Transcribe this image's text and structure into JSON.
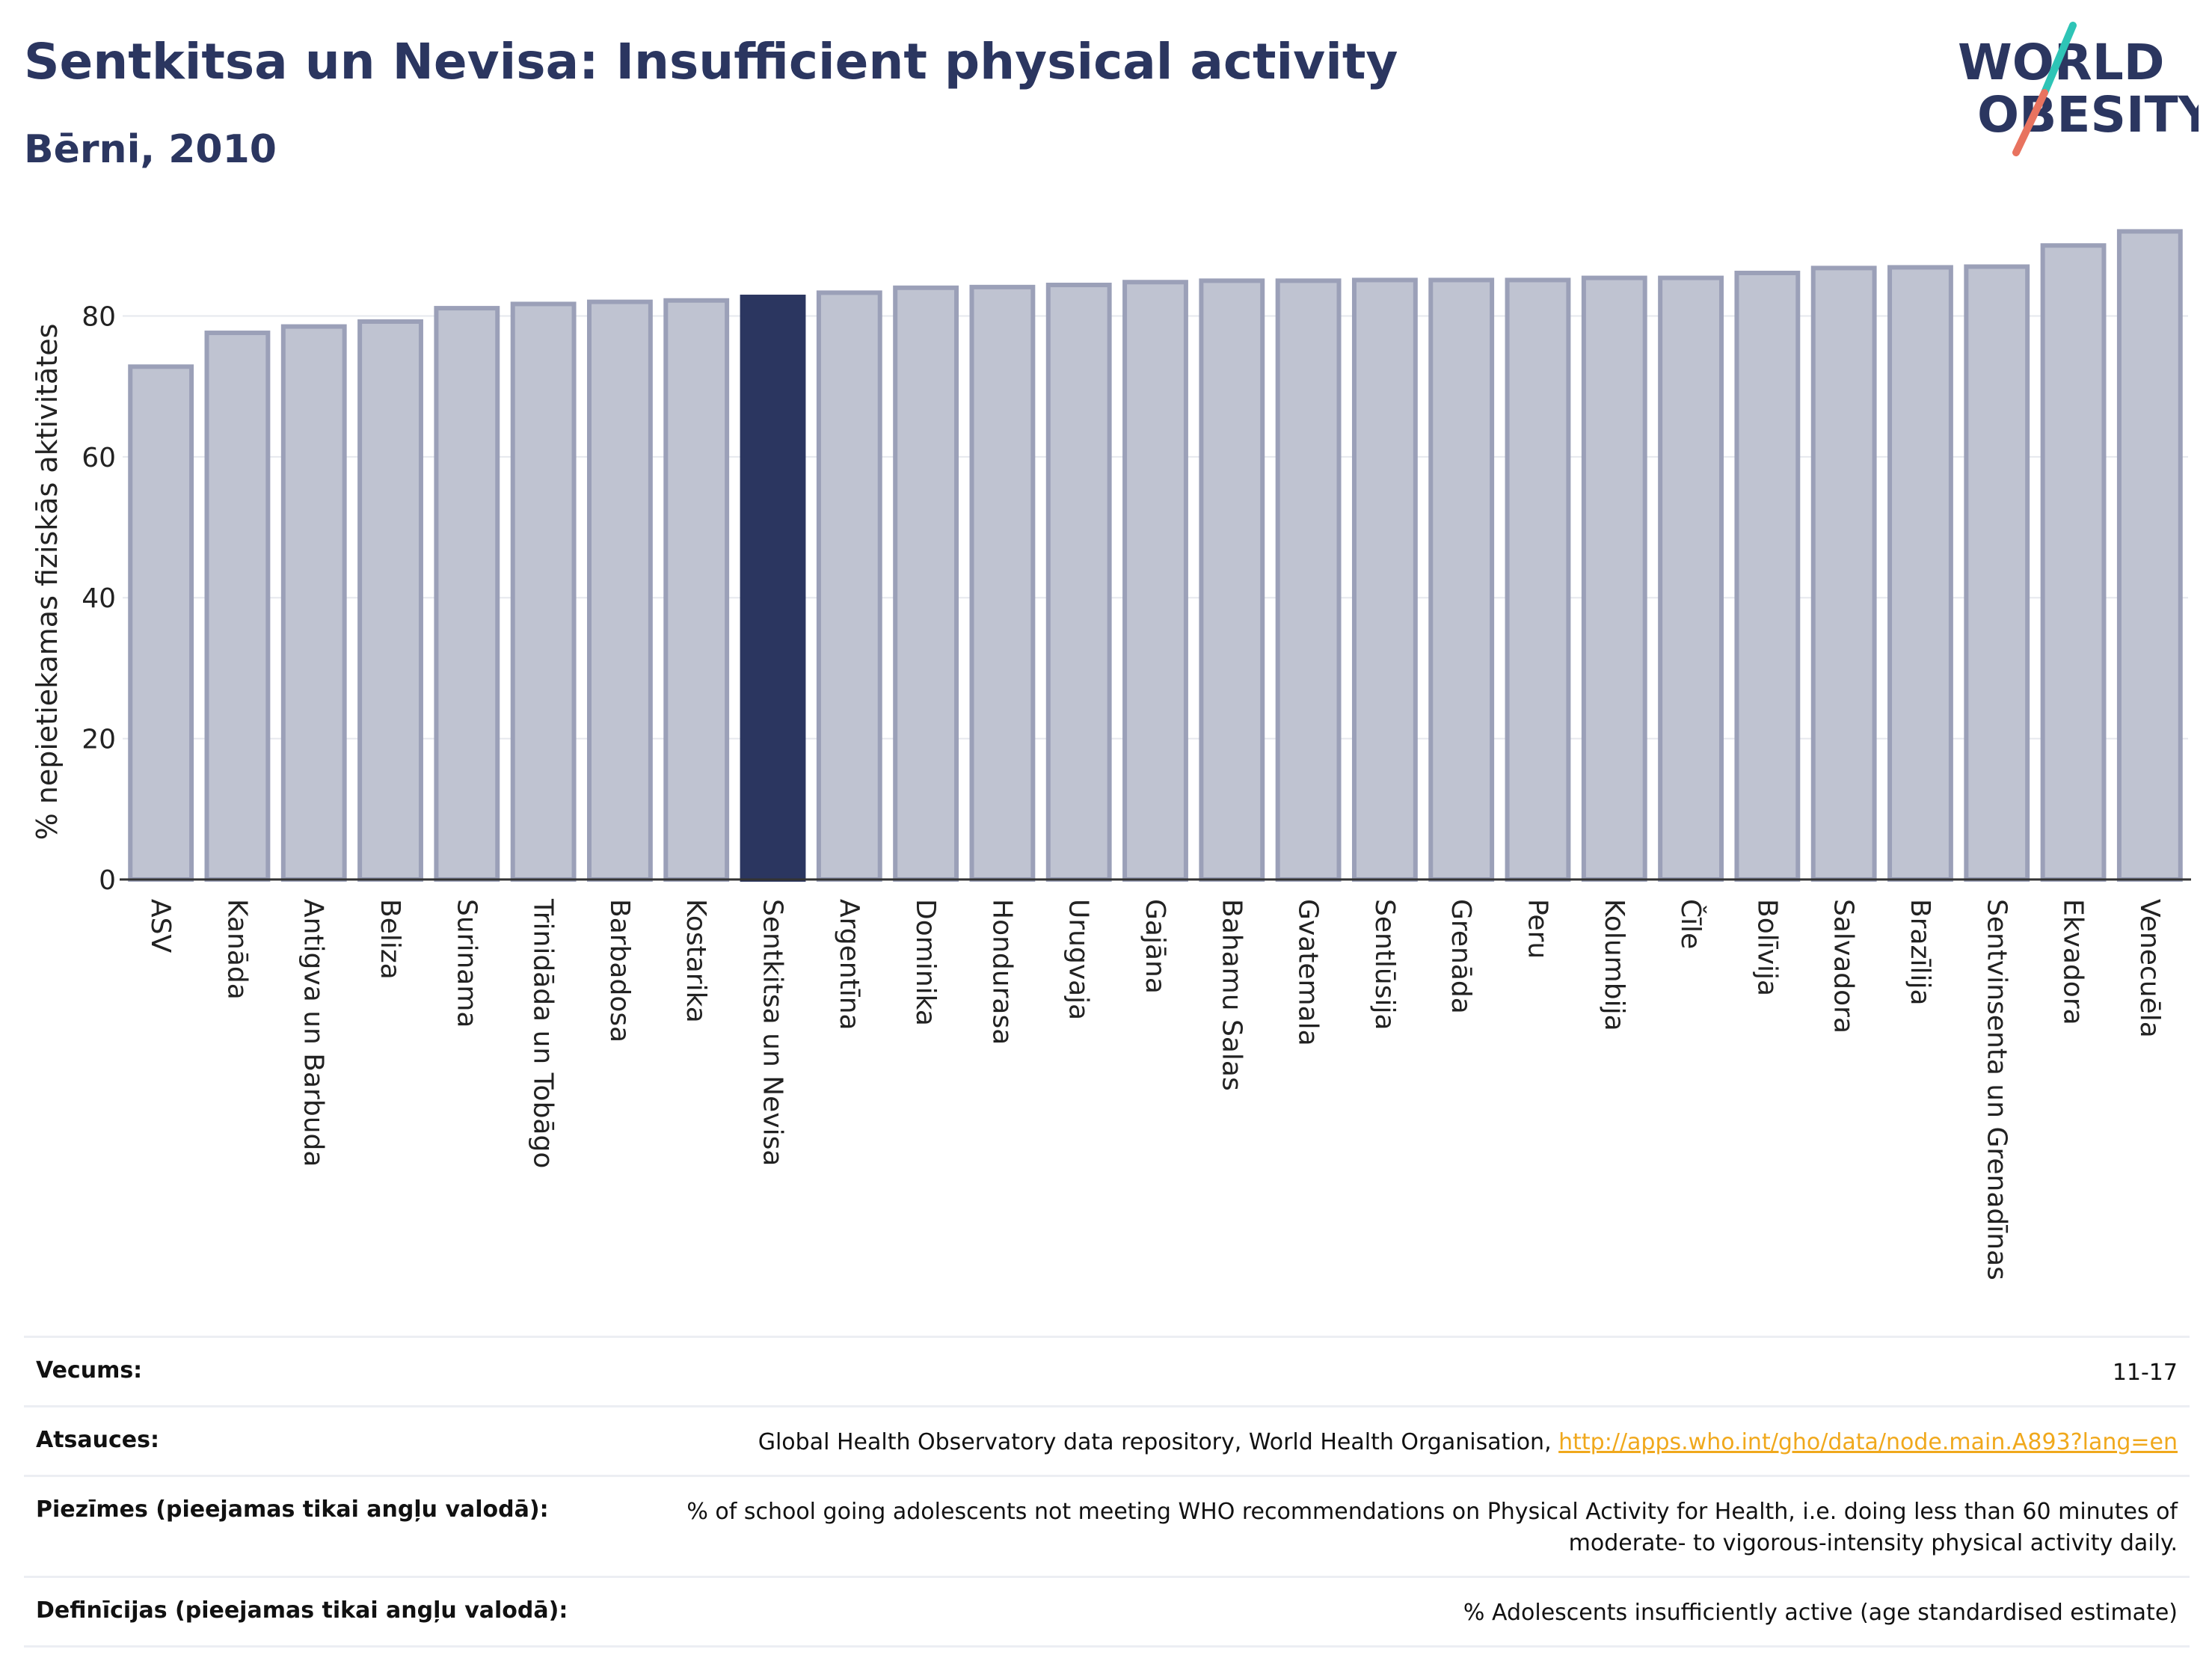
{
  "header": {
    "title": "Sentkitsa un Nevisa: Insufficient physical activity",
    "subtitle": "Bērni, 2010"
  },
  "logo": {
    "line1": "WORLD",
    "line2": "OBESITY",
    "colors": {
      "text": "#2b3660",
      "slash_teal": "#2ec4b6",
      "slash_coral": "#e8735f"
    }
  },
  "colors": {
    "bar_default": "#bfc3d1",
    "bar_default_border": "#9ba0b8",
    "bar_highlight": "#2b3660",
    "axis": "#333333",
    "grid": "#e6e8ee"
  },
  "chart_data": {
    "type": "bar",
    "title": "Sentkitsa un Nevisa: Insufficient physical activity",
    "subtitle": "Bērni, 2010",
    "ylabel": "% nepietiekamas fiziskās aktivitātes",
    "ylim": [
      0,
      93
    ],
    "yticks": [
      0,
      20,
      40,
      60,
      80
    ],
    "grid": true,
    "highlight": "Sentkitsa un Nevisa",
    "categories": [
      "ASV",
      "Kanāda",
      "Antigva un Barbuda",
      "Beliza",
      "Surinama",
      "Trinidāda un Tobāgo",
      "Barbadosa",
      "Kostarika",
      "Sentkitsa un Nevisa",
      "Argentīna",
      "Dominika",
      "Hondurasa",
      "Urugvaja",
      "Gajāna",
      "Bahamu Salas",
      "Gvatemala",
      "Sentlūsija",
      "Grenāda",
      "Peru",
      "Kolumbija",
      "Čīle",
      "Bolīvija",
      "Salvadora",
      "Brazīlija",
      "Sentvinsenta un Grenadīnas",
      "Ekvadora",
      "Venecuēla"
    ],
    "values": [
      72.8,
      77.6,
      78.5,
      79.2,
      81.1,
      81.7,
      82.0,
      82.2,
      82.7,
      83.3,
      84.0,
      84.1,
      84.4,
      84.8,
      85.0,
      85.0,
      85.1,
      85.1,
      85.1,
      85.4,
      85.4,
      86.1,
      86.8,
      86.9,
      87.0,
      90.0,
      92.0
    ]
  },
  "meta": {
    "rows": [
      {
        "label": "Vecums:",
        "value": "11-17"
      },
      {
        "label": "Atsauces:",
        "value": "Global Health Observatory data repository, World Health Organisation, ",
        "link": "http://apps.who.int/gho/data/node.main.A893?lang=en"
      },
      {
        "label": "Piezīmes (pieejamas tikai angļu valodā):",
        "value": "% of school going adolescents not meeting WHO recommendations on Physical Activity for Health, i.e. doing less than 60 minutes of moderate- to vigorous-intensity physical activity daily."
      },
      {
        "label": "Definīcijas (pieejamas tikai angļu valodā):",
        "value": "% Adolescents insufficiently active (age standardised estimate)"
      }
    ]
  }
}
